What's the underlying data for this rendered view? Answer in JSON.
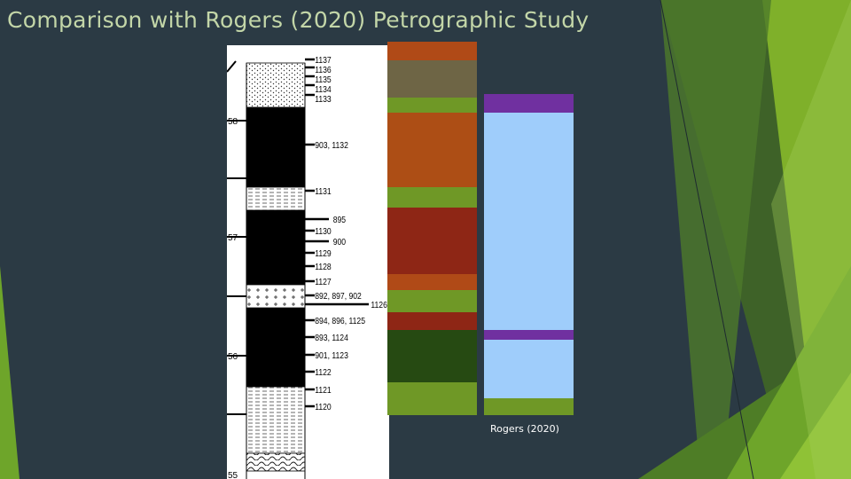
{
  "slide": {
    "title": "Comparison with Rogers (2020) Petrographic Study",
    "caption": "Rogers (2020)"
  },
  "colors": {
    "background": "#2b3a44",
    "accent_green": "#7fb02a",
    "title_text": "#c3d6a8"
  },
  "strat_column": {
    "depth_labels": [
      "58",
      "57",
      "56",
      "55"
    ],
    "sample_labels": [
      "1137",
      "1136",
      "1135",
      "1134",
      "1133",
      "903, 1132",
      "1131",
      "1130",
      "1129",
      "1128",
      "1127",
      "892, 897, 902",
      "894, 896, 1125",
      "893, 1124",
      "901, 1123",
      "1122",
      "1121",
      "1120"
    ],
    "side_labels": [
      "895",
      "900",
      "1126"
    ]
  },
  "legend_bars": {
    "icons": [
      "sandstone-pattern",
      "shale-pattern",
      "cross-pattern",
      "ripple-pattern"
    ]
  }
}
